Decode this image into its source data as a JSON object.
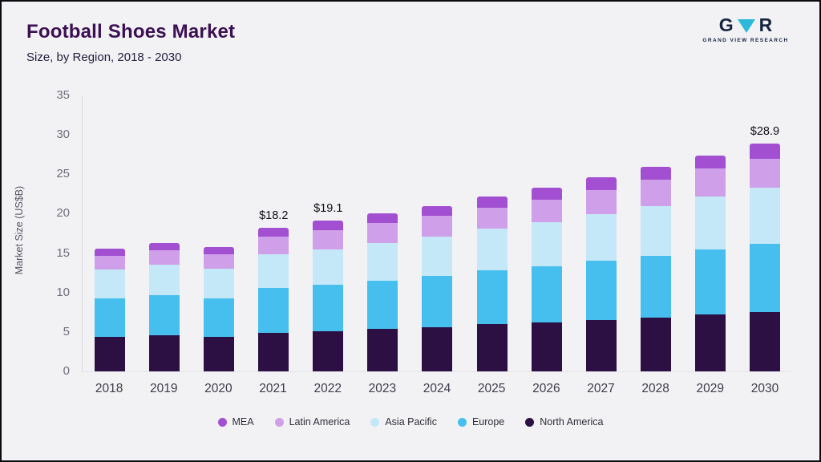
{
  "header": {
    "title": "Football Shoes Market",
    "subtitle": "Size, by Region, 2018 - 2030",
    "logo": {
      "left_letter": "G",
      "right_letter": "R",
      "text": "GRAND VIEW RESEARCH",
      "triangle_color": "#2cb9da"
    }
  },
  "chart_data": {
    "type": "bar",
    "stacked": true,
    "title": "Football Shoes Market Size, by Region, 2018 - 2030",
    "xlabel": "",
    "ylabel": "Market Size (US$B)",
    "ylim": [
      0,
      35
    ],
    "yticks": [
      0,
      5,
      10,
      15,
      20,
      25,
      30,
      35
    ],
    "grid": false,
    "legend_position": "bottom",
    "categories": [
      "2018",
      "2019",
      "2020",
      "2021",
      "2022",
      "2023",
      "2024",
      "2025",
      "2026",
      "2027",
      "2028",
      "2029",
      "2030"
    ],
    "series": [
      {
        "name": "North America",
        "color": "#2d1043",
        "values": [
          4.4,
          4.6,
          4.4,
          4.9,
          5.1,
          5.4,
          5.6,
          6.0,
          6.2,
          6.5,
          6.8,
          7.2,
          7.5
        ]
      },
      {
        "name": "Europe",
        "color": "#47bfee",
        "values": [
          4.9,
          5.1,
          4.9,
          5.7,
          5.9,
          6.1,
          6.5,
          6.8,
          7.1,
          7.5,
          7.9,
          8.3,
          8.7
        ]
      },
      {
        "name": "Asia Pacific",
        "color": "#c5e8f9",
        "values": [
          3.6,
          3.8,
          3.7,
          4.3,
          4.5,
          4.8,
          5.0,
          5.3,
          5.6,
          5.9,
          6.3,
          6.7,
          7.1
        ]
      },
      {
        "name": "Latin America",
        "color": "#cfa0e9",
        "values": [
          1.8,
          1.9,
          1.9,
          2.2,
          2.4,
          2.5,
          2.6,
          2.7,
          2.9,
          3.1,
          3.3,
          3.5,
          3.7
        ]
      },
      {
        "name": "MEA",
        "color": "#a24fd1",
        "values": [
          0.9,
          0.9,
          0.9,
          1.1,
          1.2,
          1.2,
          1.3,
          1.4,
          1.5,
          1.6,
          1.6,
          1.7,
          1.9
        ]
      }
    ],
    "totals": [
      15.6,
      16.3,
      15.8,
      18.2,
      19.1,
      20.0,
      21.0,
      22.2,
      23.3,
      24.6,
      25.9,
      27.4,
      28.9
    ],
    "annotations": [
      {
        "category": "2021",
        "label": "$18.2"
      },
      {
        "category": "2022",
        "label": "$19.1"
      },
      {
        "category": "2030",
        "label": "$28.9"
      }
    ],
    "legend": [
      "MEA",
      "Latin America",
      "Asia Pacific",
      "Europe",
      "North America"
    ]
  }
}
